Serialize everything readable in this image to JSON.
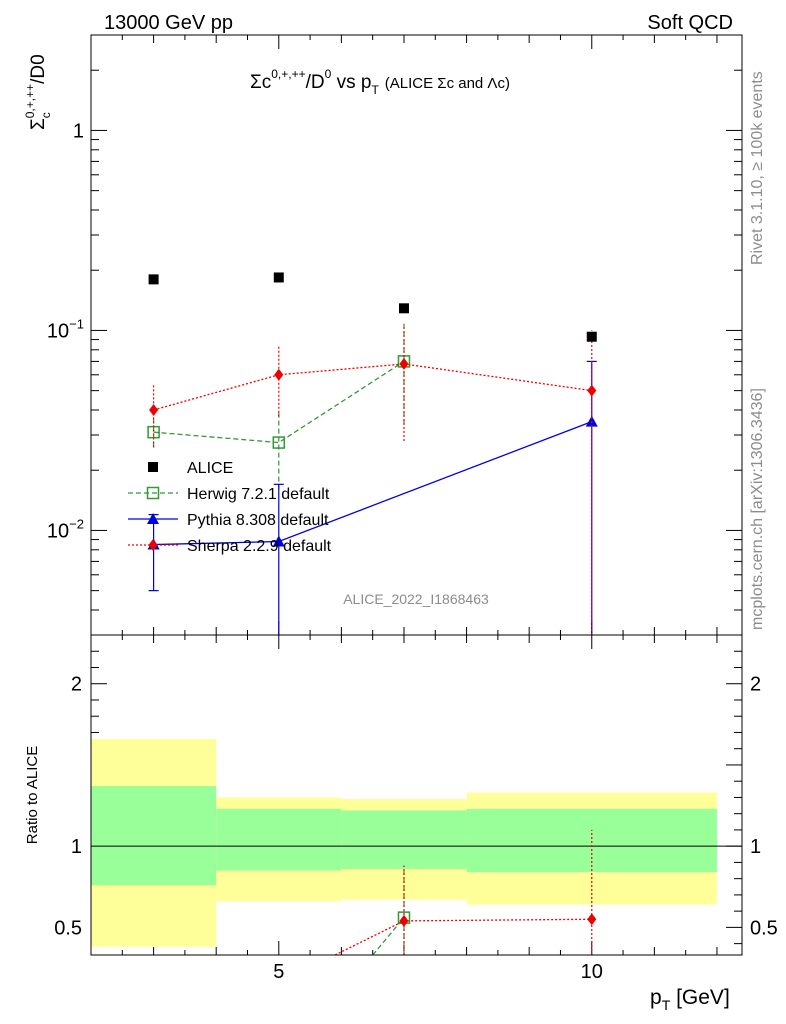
{
  "header": {
    "left": "13000 GeV pp",
    "right": "Soft QCD"
  },
  "side_text": {
    "rivet": "Rivet 3.1.10, ≥ 100k events",
    "mcplots": "mcplots.cern.ch [arXiv:1306.3436]"
  },
  "watermark": "ALICE_2022_I1868463",
  "chart_data": [
    {
      "type": "scatter",
      "title": "Σc0,+,++/D0 vs pT (ALICE Σc and Λc)",
      "title_parts": {
        "main": "Σc",
        "sup": "0,+,++",
        "mid": "/D",
        "sup2": "0",
        "vs": " vs p",
        "sub": "T",
        "small": "(ALICE Σc and Λc)"
      },
      "ylabel": "Σc0,+,++/D0",
      "ylabel_parts": {
        "main": "Σ",
        "sub": "c",
        "sup": "0,+,++",
        "end": "/D0"
      },
      "xlabel": "pT [GeV]",
      "xlabel_parts": {
        "main": "p",
        "sub": "T",
        "end": " [GeV]"
      },
      "yscale": "log",
      "xlim": [
        2,
        12.4
      ],
      "ylim": [
        0.003,
        3.0
      ],
      "y_ticks": [
        {
          "value": 1,
          "label": "1"
        },
        {
          "value": 0.1,
          "label": "10",
          "exp": "−1"
        },
        {
          "value": 0.01,
          "label": "10",
          "exp": "−2"
        }
      ],
      "legend_position": "bottom-left",
      "series": [
        {
          "name": "ALICE",
          "style": "data",
          "color": "#000000",
          "marker": "square-filled",
          "x": [
            3,
            5,
            7,
            10
          ],
          "y": [
            0.18,
            0.184,
            0.129,
            0.093
          ]
        },
        {
          "name": "Herwig 7.2.1 default",
          "style": "dashed",
          "color": "#339933",
          "marker": "square-open",
          "x": [
            3,
            5,
            7,
            10
          ],
          "y": [
            0.031,
            0.0275,
            0.07,
            null
          ],
          "err_low": [
            0.026,
            0.016,
            0.034,
            null
          ],
          "err_high": [
            0.036,
            0.04,
            0.108,
            null
          ]
        },
        {
          "name": "Pythia 8.308 default",
          "style": "solid",
          "color": "#0000dd",
          "marker": "triangle-filled",
          "x": [
            3,
            5,
            10
          ],
          "y": [
            0.0085,
            0.0088,
            0.035
          ],
          "err_low": [
            0.005,
            0.0001,
            0.0001
          ],
          "err_high": [
            0.012,
            0.017,
            0.07
          ]
        },
        {
          "name": "Sherpa 2.2.9 default",
          "style": "dotted",
          "color": "#ee0000",
          "marker": "diamond-filled",
          "x": [
            3,
            5,
            7,
            10
          ],
          "y": [
            0.04,
            0.06,
            0.068,
            0.05
          ],
          "err_low": [
            0.026,
            0.037,
            0.028,
            0.0001
          ],
          "err_high": [
            0.054,
            0.083,
            0.107,
            0.1
          ]
        }
      ]
    },
    {
      "type": "scatter",
      "ylabel": "Ratio to ALICE",
      "xlim": [
        2,
        12.4
      ],
      "ylim": [
        0.33,
        2.3
      ],
      "y_ticks": [
        {
          "value": 0.5,
          "label": "0.5"
        },
        {
          "value": 1,
          "label": "1"
        },
        {
          "value": 2,
          "label": "2"
        }
      ],
      "x_ticks": [
        {
          "value": 5,
          "label": "5"
        },
        {
          "value": 10,
          "label": "10"
        }
      ],
      "bands": [
        {
          "x0": 2,
          "x1": 4,
          "yellow": [
            0.38,
            1.66
          ],
          "green": [
            0.76,
            1.37
          ]
        },
        {
          "x0": 4,
          "x1": 6,
          "yellow": [
            0.66,
            1.3
          ],
          "green": [
            0.85,
            1.23
          ]
        },
        {
          "x0": 6,
          "x1": 8,
          "yellow": [
            0.67,
            1.29
          ],
          "green": [
            0.86,
            1.22
          ]
        },
        {
          "x0": 8,
          "x1": 12,
          "yellow": [
            0.64,
            1.33
          ],
          "green": [
            0.84,
            1.23
          ]
        }
      ],
      "series": [
        {
          "name": "Herwig 7.2.1 default",
          "color": "#339933",
          "style": "dashed",
          "x": [
            6.5,
            7
          ],
          "y": [
            0.33,
            0.56
          ],
          "err_low": [
            null,
            0.26
          ],
          "err_high": [
            null,
            0.88
          ]
        },
        {
          "name": "Sherpa 2.2.9 default",
          "color": "#ee0000",
          "style": "dotted",
          "x": [
            5.9,
            7,
            10
          ],
          "y": [
            0.33,
            0.54,
            0.55
          ],
          "err_low": [
            null,
            0.2,
            0.0
          ],
          "err_high": [
            null,
            0.88,
            1.1
          ]
        }
      ]
    }
  ]
}
